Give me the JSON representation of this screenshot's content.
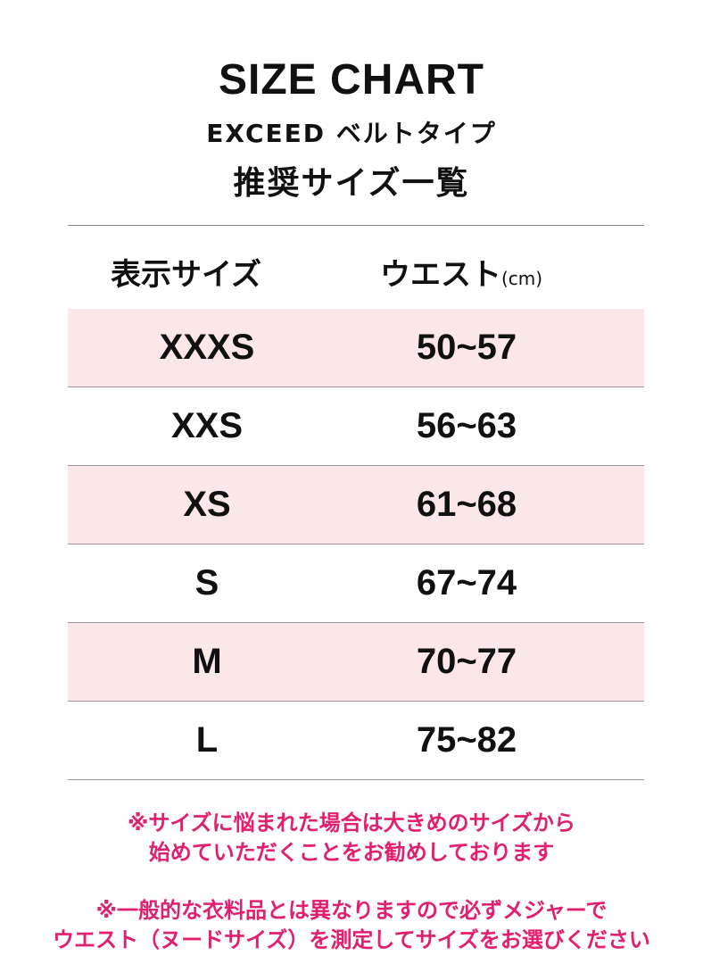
{
  "header": {
    "title": "SIZE CHART",
    "subtitle": "EXCEED ベルトタイプ",
    "heading": "推奨サイズ一覧"
  },
  "table": {
    "columns": [
      "表示サイズ",
      "ウエスト"
    ],
    "unit": "(cm)",
    "rows": [
      {
        "size": "XXXS",
        "waist": "50~57"
      },
      {
        "size": "XXS",
        "waist": "56~63"
      },
      {
        "size": "XS",
        "waist": "61~68"
      },
      {
        "size": "S",
        "waist": "67~74"
      },
      {
        "size": "M",
        "waist": "70~77"
      },
      {
        "size": "L",
        "waist": "75~82"
      }
    ],
    "stripe_color": "#fbe6e8"
  },
  "notes": [
    {
      "line1": "※サイズに悩まれた場合は大きめのサイズから",
      "line2": "始めていただくことをお勧めしております"
    },
    {
      "line1": "※一般的な衣料品とは異なりますので必ずメジャーで",
      "line2": "ウエスト（ヌードサイズ）を測定してサイズをお選びください"
    }
  ],
  "note_color": "#e0206e"
}
